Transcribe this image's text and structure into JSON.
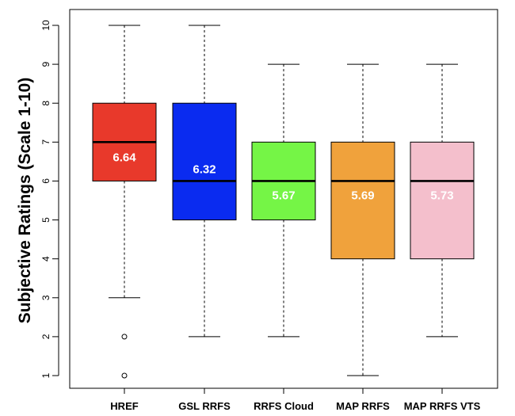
{
  "chart_data": {
    "type": "box",
    "ylabel": "Subjective Ratings (Scale 1-10)",
    "xlabel": "",
    "title": "",
    "ylim": [
      1,
      10
    ],
    "yticks": [
      1,
      2,
      3,
      4,
      5,
      6,
      7,
      8,
      9,
      10
    ],
    "grid": false,
    "categories": [
      "HREF",
      "GSL RRFS",
      "RRFS Cloud",
      "MAP RRFS",
      "MAP RRFS VTS"
    ],
    "boxes": [
      {
        "category": "HREF",
        "color": "#e8392b",
        "whisker_low": 3,
        "q1": 6,
        "median": 7,
        "q3": 8,
        "whisker_high": 10,
        "outliers": [
          2,
          1
        ],
        "mean_label": "6.64"
      },
      {
        "category": "GSL RRFS",
        "color": "#0a2bf0",
        "whisker_low": 2,
        "q1": 5,
        "median": 6,
        "q3": 8,
        "whisker_high": 10,
        "outliers": [],
        "mean_label": "6.32"
      },
      {
        "category": "RRFS Cloud",
        "color": "#75f546",
        "whisker_low": 2,
        "q1": 5,
        "median": 6,
        "q3": 7,
        "whisker_high": 9,
        "outliers": [],
        "mean_label": "5.67"
      },
      {
        "category": "MAP RRFS",
        "color": "#f0a23c",
        "whisker_low": 1,
        "q1": 4,
        "median": 6,
        "q3": 7,
        "whisker_high": 9,
        "outliers": [],
        "mean_label": "5.69"
      },
      {
        "category": "MAP RRFS VTS",
        "color": "#f4bfcc",
        "whisker_low": 2,
        "q1": 4,
        "median": 6,
        "q3": 7,
        "whisker_high": 9,
        "outliers": [],
        "mean_label": "5.73"
      }
    ]
  }
}
